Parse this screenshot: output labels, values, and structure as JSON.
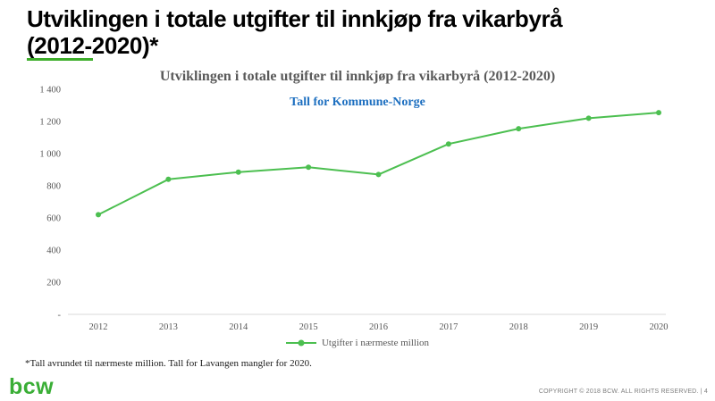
{
  "slide": {
    "title_line1": "Utviklingen i totale utgifter til innkjøp fra vikarbyrå",
    "title_line2": "(2012-2020)*",
    "footnote": "*Tall avrundet til nærmeste million. Tall for Lavangen mangler for 2020.",
    "logo_text": "bcw",
    "copyright": "COPYRIGHT © 2018 BCW. ALL RIGHTS RESERVED. | 4"
  },
  "chart": {
    "title": "Utviklingen i totale utgifter til innkjøp fra vikarbyrå (2012-2020)",
    "subtitle": "Tall for Kommune-Norge"
  },
  "chart_data": {
    "type": "line",
    "title": "Utviklingen i totale utgifter til innkjøp fra vikarbyrå (2012-2020)",
    "subtitle": "Tall for Kommune-Norge",
    "categories": [
      "2012",
      "2013",
      "2014",
      "2015",
      "2016",
      "2017",
      "2018",
      "2019",
      "2020"
    ],
    "series": [
      {
        "name": "Utgifter i nærmeste million",
        "values": [
          620,
          840,
          885,
          915,
          870,
          1060,
          1155,
          1220,
          1255
        ]
      }
    ],
    "ylim": [
      0,
      1400
    ],
    "ytick_step": 200,
    "ytick_labels": [
      "-",
      "200",
      "400",
      "600",
      "800",
      "1 000",
      "1 200",
      "1 400"
    ],
    "grid": false,
    "legend_position": "bottom",
    "line_color": "#4cbf50",
    "marker": "circle"
  },
  "colors": {
    "accent_green": "#3fae2c",
    "line_green": "#4cbf50",
    "subtitle_blue": "#1d6fc0",
    "axis_gray": "#595959"
  }
}
